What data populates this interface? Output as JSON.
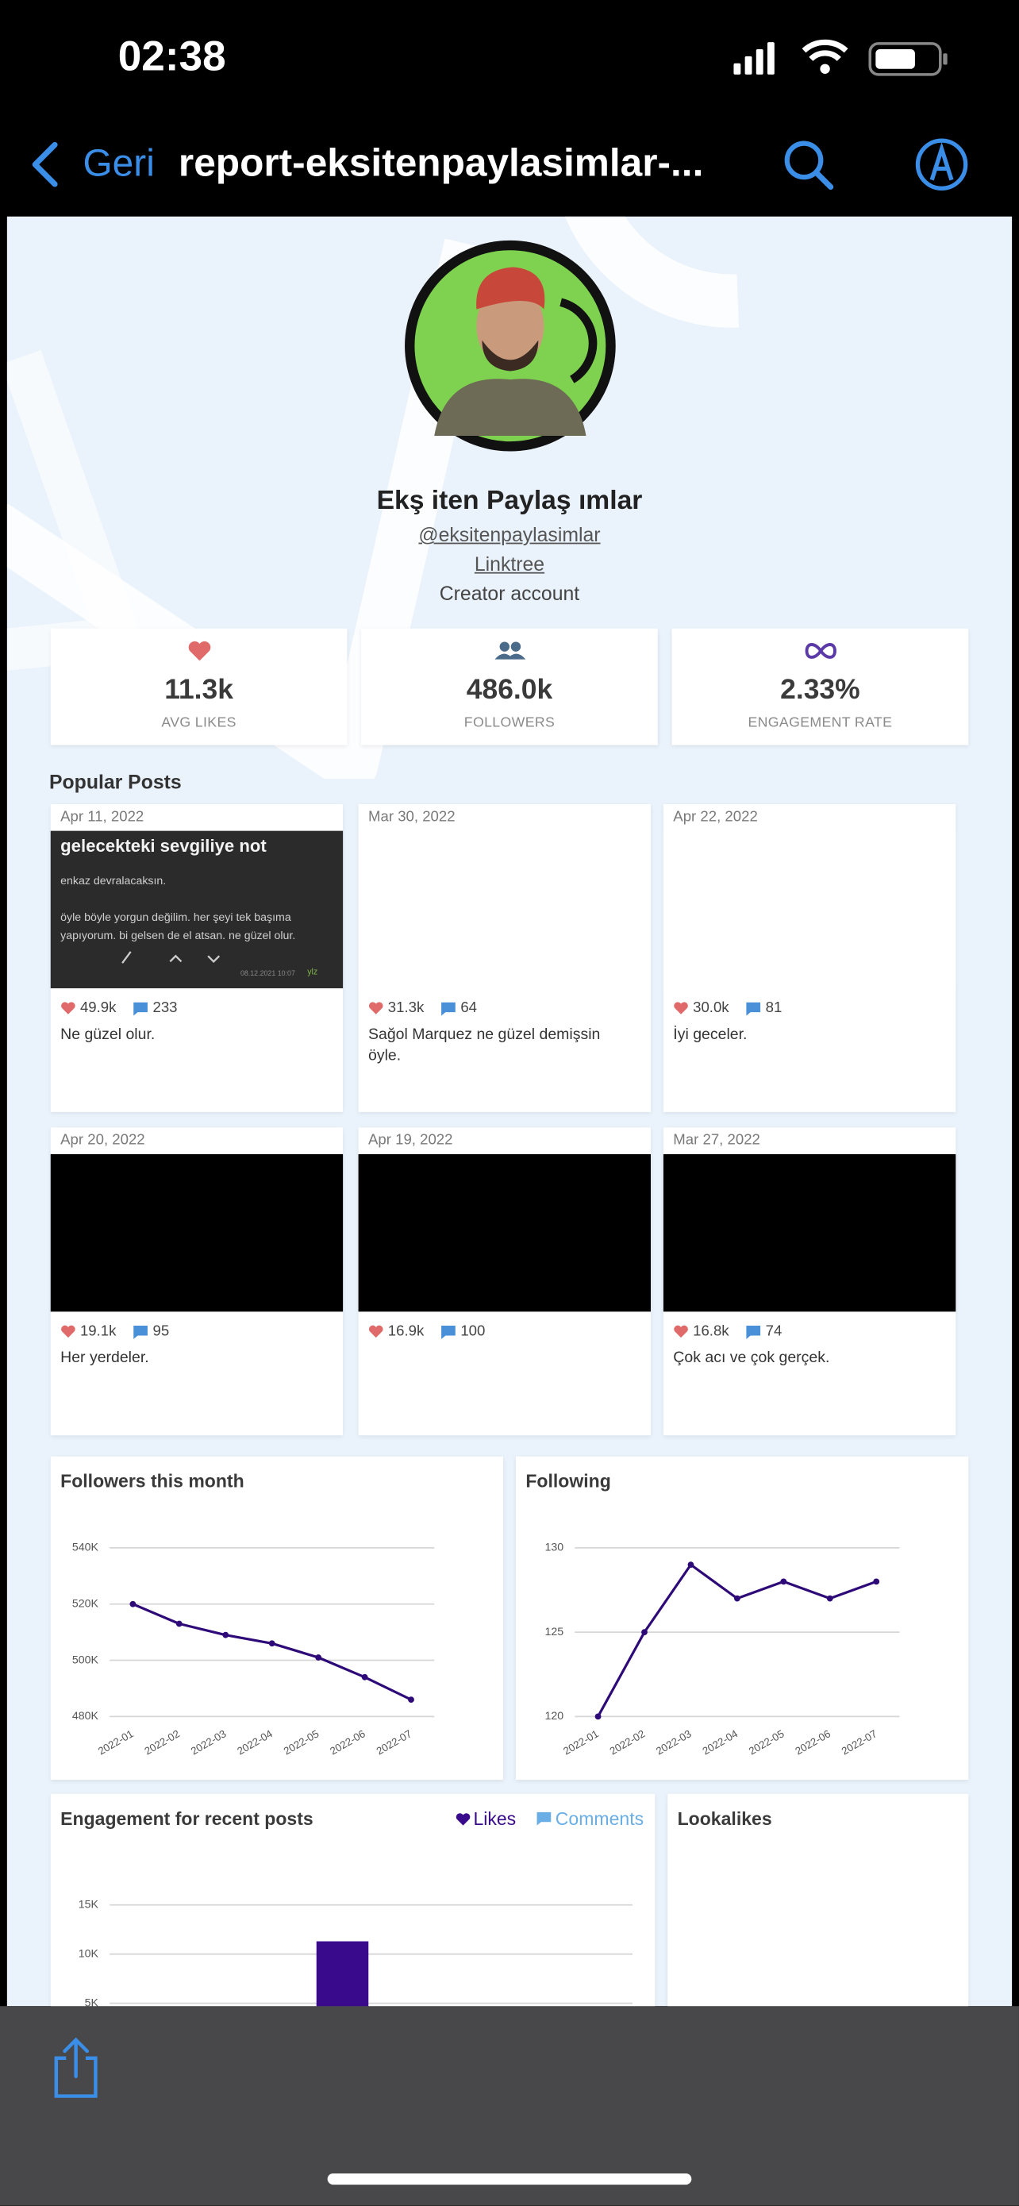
{
  "status_bar": {
    "time": "02:38"
  },
  "nav": {
    "back": "Geri",
    "title": "report-eksitenpaylasimlar-..."
  },
  "profile": {
    "name": "Ekş iten Paylaş ımlar",
    "handle": "@eksitenpaylasimlar",
    "link": "Linktree",
    "account_type": "Creator account"
  },
  "stats": [
    {
      "value": "11.3k",
      "label": "AVG LIKES"
    },
    {
      "value": "486.0k",
      "label": "FOLLOWERS"
    },
    {
      "value": "2.33%",
      "label": "ENGAGEMENT RATE"
    }
  ],
  "popular_posts": {
    "title": "Popular Posts",
    "posts": [
      {
        "date": "Apr 11, 2022",
        "media_color": "#2b2b2b",
        "likes": "49.9k",
        "comments": "233",
        "caption": "Ne güzel olur.",
        "image": {
          "title": "gelecekteki sevgiliye not",
          "lines": [
            "enkaz devralacaksın.",
            "öyle böyle yorgun değilim. her şeyi tek başıma",
            "yapıyorum. bi gelsen de el atsan. ne güzel olur."
          ],
          "meta": "08.12.2021 10:07",
          "author": "ylz"
        }
      },
      {
        "date": "Mar 30, 2022",
        "media_color": "#ffffff",
        "likes": "31.3k",
        "comments": "64",
        "caption": "Sağol Marquez ne güzel demişsin öyle."
      },
      {
        "date": "Apr 22, 2022",
        "media_color": "#ffffff",
        "likes": "30.0k",
        "comments": "81",
        "caption": "İyi geceler."
      },
      {
        "date": "Apr 20, 2022",
        "media_color": "#000000",
        "likes": "19.1k",
        "comments": "95",
        "caption": "Her yerdeler."
      },
      {
        "date": "Apr 19, 2022",
        "media_color": "#000000",
        "likes": "16.9k",
        "comments": "100"
      },
      {
        "date": "Mar 27, 2022",
        "media_color": "#000000",
        "likes": "16.8k",
        "comments": "74",
        "caption": "Çok acı ve çok gerçek."
      }
    ]
  },
  "chart_data": [
    {
      "type": "line",
      "title": "Followers this month",
      "categories": [
        "2022-01",
        "2022-02",
        "2022-03",
        "2022-04",
        "2022-05",
        "2022-06",
        "2022-07"
      ],
      "values": [
        520000,
        513000,
        509000,
        506000,
        501000,
        494000,
        486000
      ],
      "color": "#2e0a78",
      "ylim": [
        480000,
        540000
      ],
      "yticks": [
        {
          "value": 480000,
          "label": "480K"
        },
        {
          "value": 500000,
          "label": "500K"
        },
        {
          "value": 520000,
          "label": "520K"
        },
        {
          "value": 540000,
          "label": "540K"
        }
      ],
      "grid": true
    },
    {
      "type": "line",
      "title": "Following",
      "categories": [
        "2022-01",
        "2022-02",
        "2022-03",
        "2022-04",
        "2022-05",
        "2022-06",
        "2022-07"
      ],
      "values": [
        120,
        125,
        129,
        127,
        128,
        127,
        128
      ],
      "color": "#2e0a78",
      "ylim": [
        120,
        130
      ],
      "yticks": [
        120,
        125,
        130
      ],
      "grid": true
    },
    {
      "type": "bar",
      "title": "Engagement for recent posts",
      "categories": [
        null
      ],
      "series": [
        {
          "name": "Likes",
          "color": "#3a0a8c",
          "values": [
            11300
          ]
        },
        {
          "name": "Comments",
          "color": "#6aaee6",
          "values": [
            null
          ]
        }
      ],
      "ylim": [
        0,
        15000
      ],
      "yticks": [
        {
          "value": 5000,
          "label": "5K"
        },
        {
          "value": 10000,
          "label": "10K"
        },
        {
          "value": 15000,
          "label": "15K"
        }
      ],
      "grid": true,
      "legend": "top-right"
    }
  ],
  "lookalikes": {
    "title": "Lookalikes"
  }
}
